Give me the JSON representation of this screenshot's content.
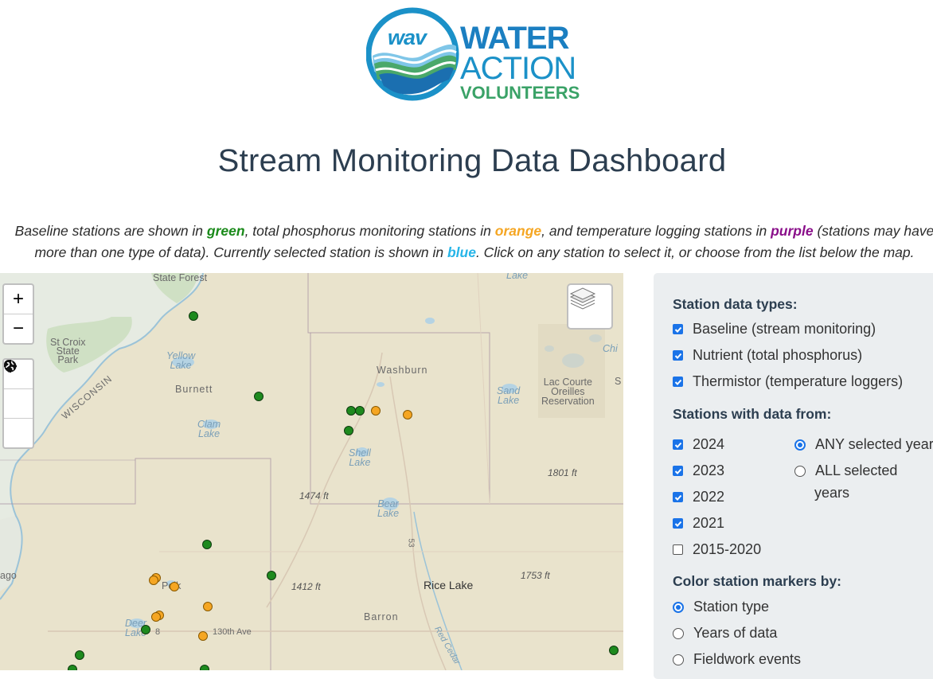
{
  "logo": {
    "circle_text": "wav",
    "line1": "WATER",
    "line2": "ACTION",
    "line3": "VOLUNTEERS"
  },
  "title": "Stream Monitoring Data Dashboard",
  "intro": {
    "t1": "Baseline stations are shown in ",
    "green": "green",
    "t2": ", total phosphorus monitoring stations in ",
    "orange": "orange",
    "t3": ", and temperature logging stations in ",
    "purple": "purple",
    "t4": " (stations may have more than one type of data). Currently selected station is shown in ",
    "blue": "blue",
    "t5": ". Click on any station to select it, or choose from the list below the map.",
    "colors": {
      "green": "#1a8a1a",
      "orange": "#f5a623",
      "purple": "#8a0f8a",
      "blue": "#26b5e8"
    }
  },
  "map": {
    "controls": {
      "zoom_in": "+",
      "zoom_out": "−",
      "locate_icon": "crosshair-icon",
      "marker_icon": "map-pin-icon",
      "globe_icon": "globe-icon",
      "layers_icon": "layers-icon"
    },
    "labels": {
      "state_forest": "State\nForest",
      "lake_top": "Lake",
      "st_croix": "St Croix\nState\nPark",
      "wisconsin": "WISCONSIN",
      "yellow_lake": "Yellow\nLake",
      "burnett": "Burnett",
      "clam_lake": "Clam\nLake",
      "washburn": "Washburn",
      "shell_lake": "Shell\nLake",
      "sand_lake": "Sand\nLake",
      "lac_courte": "Lac Courte\nOreilles\nReservation",
      "chi": "Chi",
      "s_edge": "S",
      "elev_1474": "1474 ft",
      "elev_1801": "1801 ft",
      "elev_1412": "1412 ft",
      "elev_1753": "1753 ft",
      "bear_lake": "Bear\nLake",
      "polk": "Polk",
      "deer_lake": "Deer\nLake",
      "ave_130": "130th Ave",
      "rice_lake": "Rice Lake",
      "barron": "Barron",
      "ago": "ago",
      "road_53": "53",
      "red_cedar": "Red Cedar",
      "road_8": "8"
    },
    "stations": [
      {
        "type": "green"
      },
      {
        "type": "green"
      },
      {
        "type": "green"
      },
      {
        "type": "green"
      },
      {
        "type": "green"
      },
      {
        "type": "orange"
      },
      {
        "type": "orange"
      },
      {
        "type": "green"
      },
      {
        "type": "green"
      },
      {
        "type": "orange"
      },
      {
        "type": "orange"
      },
      {
        "type": "orange"
      },
      {
        "type": "orange"
      },
      {
        "type": "orange"
      },
      {
        "type": "orange"
      },
      {
        "type": "green"
      },
      {
        "type": "orange"
      },
      {
        "type": "green"
      },
      {
        "type": "green"
      },
      {
        "type": "green"
      },
      {
        "type": "green"
      }
    ]
  },
  "panel": {
    "types_heading": "Station data types:",
    "types": [
      {
        "label": "Baseline (stream monitoring)",
        "checked": true
      },
      {
        "label": "Nutrient (total phosphorus)",
        "checked": true
      },
      {
        "label": "Thermistor (temperature loggers)",
        "checked": true
      }
    ],
    "years_heading": "Stations with data from:",
    "years": [
      {
        "label": "2024",
        "checked": true
      },
      {
        "label": "2023",
        "checked": true
      },
      {
        "label": "2022",
        "checked": true
      },
      {
        "label": "2021",
        "checked": true
      },
      {
        "label": "2015-2020",
        "checked": false
      }
    ],
    "match_any": "ANY selected year",
    "match_all_1": "ALL selected",
    "match_all_2": "years",
    "color_heading": "Color station markers by:",
    "color_by": [
      {
        "label": "Station type",
        "selected": true
      },
      {
        "label": "Years of data",
        "selected": false
      },
      {
        "label": "Fieldwork events",
        "selected": false
      }
    ]
  }
}
